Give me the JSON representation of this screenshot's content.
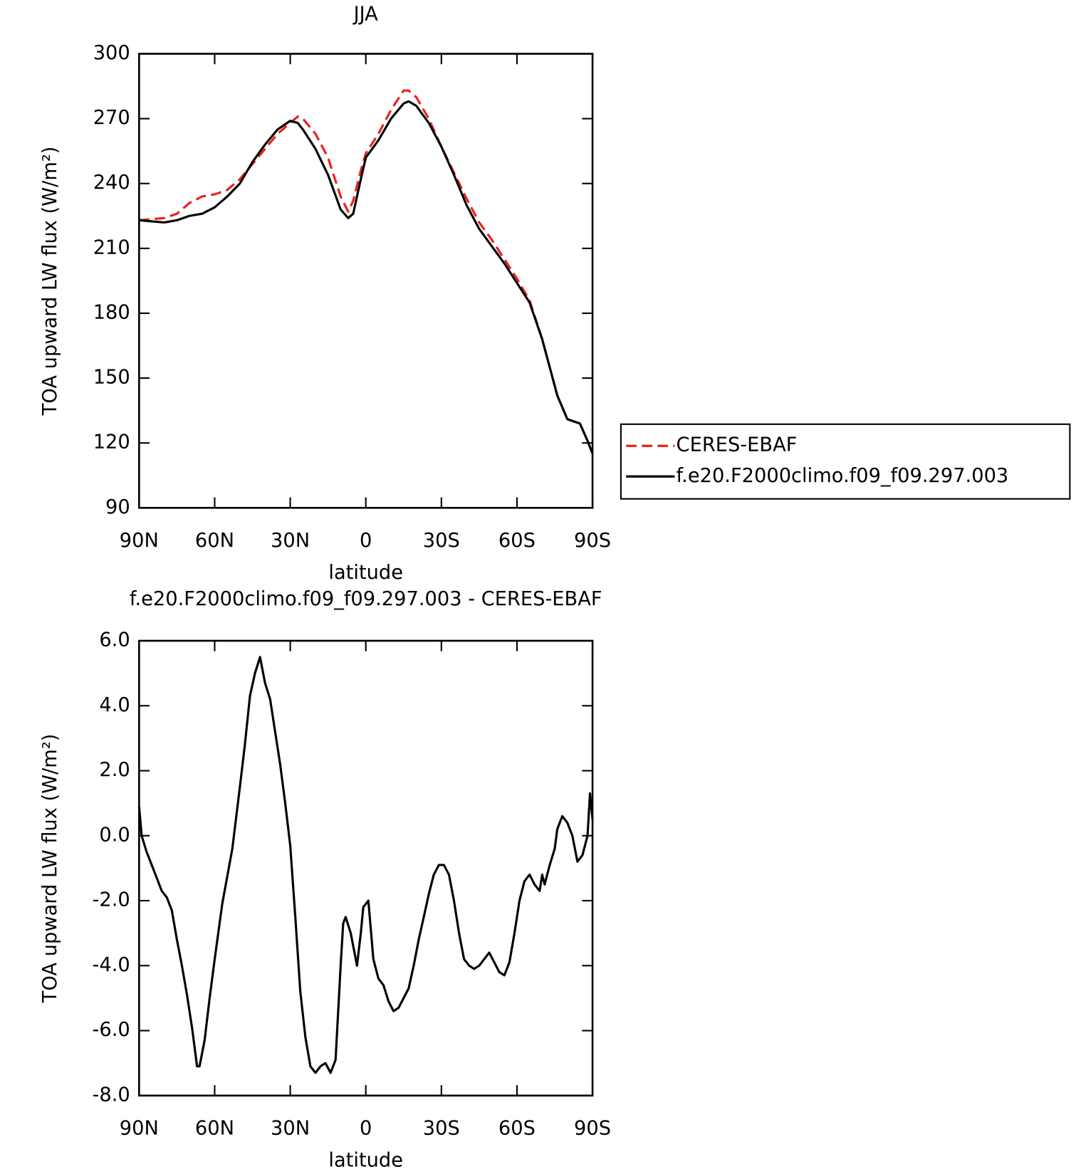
{
  "chart_data": [
    {
      "type": "line",
      "title": "JJA",
      "xlabel": "latitude",
      "ylabel": "TOA upward LW flux (W/m²)",
      "x": [
        90,
        85,
        80,
        75,
        70,
        65,
        60,
        55,
        50,
        45,
        40,
        35,
        30,
        27,
        25,
        20,
        15,
        10,
        7,
        5,
        2,
        0,
        -5,
        -10,
        -15,
        -17,
        -20,
        -25,
        -30,
        -35,
        -40,
        -45,
        -50,
        -55,
        -60,
        -65,
        -70,
        -73,
        -76,
        -80,
        -85,
        -88,
        -90
      ],
      "series": [
        {
          "name": "CERES-EBAF",
          "color": "#e8211d",
          "linestyle": "dashed",
          "values": [
            223,
            223.5,
            224,
            226,
            231,
            234,
            235,
            237,
            242,
            249,
            256,
            263,
            268,
            271,
            270,
            263,
            252,
            234,
            227,
            232,
            246,
            254,
            263,
            274,
            283,
            283,
            280,
            270,
            257,
            245,
            233,
            222,
            214,
            205,
            196,
            186,
            168,
            155,
            142,
            131,
            129,
            121,
            115
          ]
        },
        {
          "name": "f.e20.F2000climo.f09_f09.297.003",
          "color": "#000000",
          "linestyle": "solid",
          "values": [
            223,
            222.5,
            222,
            223,
            225,
            226,
            229,
            234,
            240,
            250,
            258,
            265,
            269,
            268,
            265,
            256,
            244,
            228,
            224,
            226,
            242,
            252,
            260,
            270,
            277,
            278,
            276,
            268,
            257,
            244,
            230,
            219,
            211,
            203,
            194,
            185,
            168,
            155,
            142,
            131,
            129,
            121,
            115
          ]
        }
      ],
      "xlim": [
        90,
        -90
      ],
      "xticks": [
        {
          "value": 90,
          "label": "90N"
        },
        {
          "value": 60,
          "label": "60N"
        },
        {
          "value": 30,
          "label": "30N"
        },
        0,
        {
          "value": -30,
          "label": "30S"
        },
        {
          "value": -60,
          "label": "60S"
        },
        {
          "value": -90,
          "label": "90S"
        }
      ],
      "ylim": [
        90,
        300
      ],
      "yticks": [
        90,
        120,
        150,
        180,
        210,
        240,
        270,
        300
      ],
      "legend": "right"
    },
    {
      "type": "line",
      "title": "f.e20.F2000climo.f09_f09.297.003 - CERES-EBAF",
      "xlabel": "latitude",
      "ylabel": "TOA upward LW flux (W/m²)",
      "x": [
        90,
        89,
        87,
        85,
        83,
        81,
        79,
        77,
        75,
        73,
        71,
        69,
        67,
        66,
        64,
        62,
        60,
        57,
        53,
        50,
        48,
        46,
        44,
        42,
        40,
        38,
        36,
        34,
        32,
        30,
        28,
        26,
        24,
        22,
        20,
        18,
        16,
        14,
        12,
        10,
        9,
        8,
        6,
        3.5,
        2,
        1,
        -1,
        -3,
        -5,
        -7,
        -9,
        -11,
        -13,
        -15,
        -17,
        -19,
        -21,
        -23,
        -25,
        -27,
        -29,
        -31,
        -33,
        -35,
        -37,
        -39,
        -41,
        -43,
        -45,
        -47,
        -49,
        -51,
        -53,
        -55,
        -57,
        -59,
        -61,
        -63,
        -65,
        -67,
        -69,
        -70,
        -71,
        -73,
        -75,
        -76,
        -78,
        -80,
        -82,
        -84,
        -86,
        -88,
        -89,
        -90
      ],
      "color": "#000000",
      "values": [
        0.9,
        0,
        -0.5,
        -0.9,
        -1.3,
        -1.7,
        -1.9,
        -2.3,
        -3.2,
        -4.0,
        -4.9,
        -5.9,
        -7.1,
        -7.1,
        -6.3,
        -5.0,
        -3.8,
        -2.1,
        -0.4,
        1.5,
        2.8,
        4.3,
        5.0,
        5.5,
        4.7,
        4.2,
        3.2,
        2.2,
        1.0,
        -0.3,
        -2.5,
        -4.8,
        -6.2,
        -7.1,
        -7.3,
        -7.1,
        -7.0,
        -7.3,
        -6.9,
        -4.0,
        -2.7,
        -2.5,
        -3.0,
        -4.0,
        -3.0,
        -2.2,
        -2.0,
        -3.8,
        -4.4,
        -4.6,
        -5.1,
        -5.4,
        -5.3,
        -5.0,
        -4.7,
        -4.0,
        -3.2,
        -2.5,
        -1.8,
        -1.2,
        -0.9,
        -0.9,
        -1.2,
        -2.0,
        -3.0,
        -3.8,
        -4.0,
        -4.1,
        -4.0,
        -3.8,
        -3.6,
        -3.9,
        -4.2,
        -4.3,
        -3.9,
        -3.0,
        -2.0,
        -1.4,
        -1.2,
        -1.5,
        -1.7,
        -1.2,
        -1.5,
        -0.9,
        -0.4,
        0.2,
        0.6,
        0.4,
        0,
        -0.8,
        -0.6,
        0,
        1.3,
        0.5
      ],
      "xlim": [
        90,
        -90
      ],
      "xticks": [
        {
          "value": 90,
          "label": "90N"
        },
        {
          "value": 60,
          "label": "60N"
        },
        {
          "value": 30,
          "label": "30N"
        },
        0,
        {
          "value": -30,
          "label": "30S"
        },
        {
          "value": -60,
          "label": "60S"
        },
        {
          "value": -90,
          "label": "90S"
        }
      ],
      "ylim": [
        -8,
        6
      ],
      "yticks": [
        {
          "value": -8,
          "label": "-8.0"
        },
        {
          "value": -6,
          "label": "-6.0"
        },
        {
          "value": -4,
          "label": "-4.0"
        },
        {
          "value": -2,
          "label": "-2.0"
        },
        {
          "value": 0,
          "label": "0.0"
        },
        {
          "value": 2,
          "label": "2.0"
        },
        {
          "value": 4,
          "label": "4.0"
        },
        {
          "value": 6,
          "label": "6.0"
        }
      ]
    }
  ]
}
